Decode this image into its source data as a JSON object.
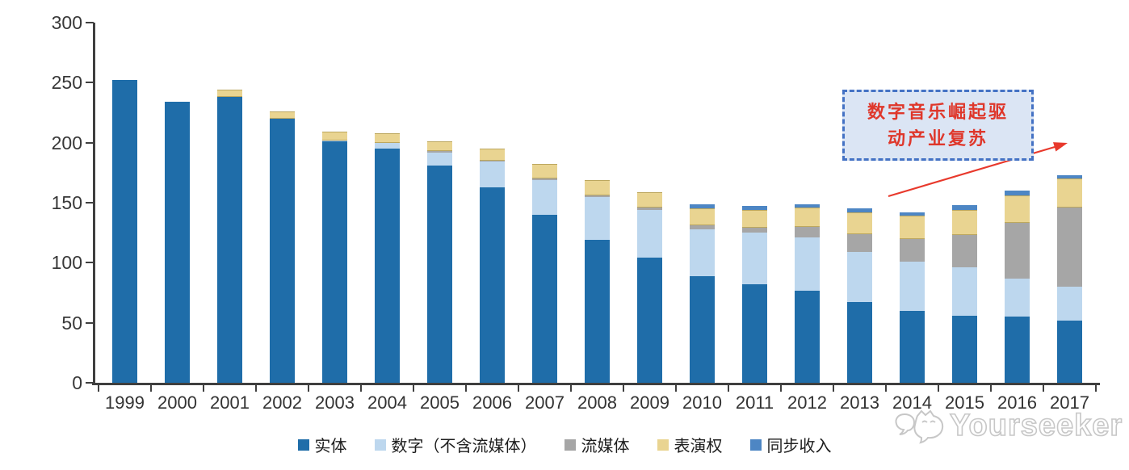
{
  "chart_data": {
    "type": "bar",
    "subtype": "stacked",
    "title": "",
    "categories": [
      "1999",
      "2000",
      "2001",
      "2002",
      "2003",
      "2004",
      "2005",
      "2006",
      "2007",
      "2008",
      "2009",
      "2010",
      "2011",
      "2012",
      "2013",
      "2014",
      "2015",
      "2016",
      "2017"
    ],
    "series": [
      {
        "name": "实体",
        "color": "#1F6DA9",
        "values": [
          252,
          234,
          238,
          220,
          201,
          195,
          181,
          163,
          140,
          119,
          104,
          89,
          82,
          77,
          67,
          60,
          56,
          55,
          52
        ]
      },
      {
        "name": "数字（不含流媒体）",
        "color": "#BDD7EE",
        "values": [
          0,
          0,
          0,
          0,
          1,
          5,
          11,
          21,
          29,
          36,
          40,
          39,
          43,
          44,
          42,
          41,
          40,
          32,
          28
        ]
      },
      {
        "name": "流媒体",
        "color": "#A6A6A6",
        "values": [
          0,
          0,
          0,
          0,
          0,
          0,
          1,
          1,
          1,
          1,
          2,
          3,
          4,
          9,
          15,
          19,
          27,
          46,
          66
        ]
      },
      {
        "name": "表演权",
        "color": "#E9D491",
        "edge": "#BCA75F",
        "values": [
          0,
          0,
          6,
          6,
          7,
          8,
          8,
          10,
          12,
          13,
          13,
          14,
          15,
          16,
          18,
          19,
          21,
          23,
          24
        ]
      },
      {
        "name": "同步收入",
        "color": "#4D86C4",
        "values": [
          0,
          0,
          0,
          0,
          0,
          0,
          0,
          0,
          0,
          0,
          0,
          4,
          3,
          3,
          3,
          3,
          4,
          4,
          3
        ]
      }
    ],
    "ylim": [
      0,
      300
    ],
    "yticks": [
      0,
      50,
      100,
      150,
      200,
      250,
      300
    ],
    "grid": false,
    "legend_position": "bottom",
    "axis_color": "#3f3f3f"
  },
  "annotation": {
    "line1": "数字音乐崛起驱",
    "line2": "动产业复苏",
    "border_color": "#4472C4",
    "fill_color": "#DBE5F4",
    "text_color": "#DF372B",
    "arrow_color": "#E8392C"
  },
  "watermark": {
    "text": "Yourseeker"
  }
}
